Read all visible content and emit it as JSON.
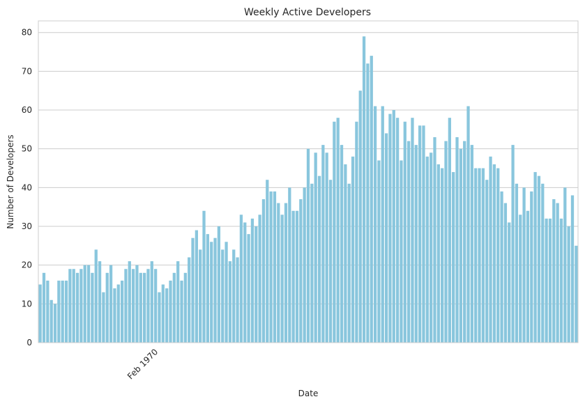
{
  "chart_data": {
    "type": "bar",
    "title": "Weekly Active Developers",
    "xlabel": "Date",
    "ylabel": "Number of Developers",
    "ylim": [
      0,
      83
    ],
    "yticks": [
      0,
      10,
      20,
      30,
      40,
      50,
      60,
      70,
      80
    ],
    "xtick_label": "Feb 1970",
    "xtick_index": 31,
    "grid": "horizontal",
    "legend": "none",
    "bar_color": "#89c6dd",
    "values": [
      15,
      18,
      16,
      11,
      10,
      16,
      16,
      16,
      19,
      19,
      18,
      19,
      20,
      20,
      18,
      24,
      21,
      13,
      18,
      20,
      14,
      15,
      16,
      19,
      21,
      19,
      20,
      18,
      18,
      19,
      21,
      19,
      13,
      15,
      14,
      16,
      18,
      21,
      16,
      18,
      22,
      27,
      29,
      24,
      34,
      28,
      26,
      27,
      30,
      24,
      26,
      21,
      24,
      22,
      33,
      31,
      28,
      32,
      30,
      33,
      37,
      42,
      39,
      39,
      36,
      33,
      36,
      40,
      34,
      34,
      37,
      40,
      50,
      41,
      49,
      43,
      51,
      49,
      42,
      57,
      58,
      51,
      46,
      41,
      48,
      57,
      65,
      79,
      72,
      74,
      61,
      47,
      61,
      54,
      59,
      60,
      58,
      47,
      57,
      52,
      58,
      51,
      56,
      56,
      48,
      49,
      53,
      46,
      45,
      52,
      58,
      44,
      53,
      50,
      52,
      61,
      51,
      45,
      45,
      45,
      42,
      48,
      46,
      45,
      39,
      36,
      31,
      51,
      41,
      33,
      40,
      34,
      39,
      44,
      43,
      41,
      32,
      32,
      37,
      36,
      32,
      40,
      30,
      38,
      25
    ]
  }
}
